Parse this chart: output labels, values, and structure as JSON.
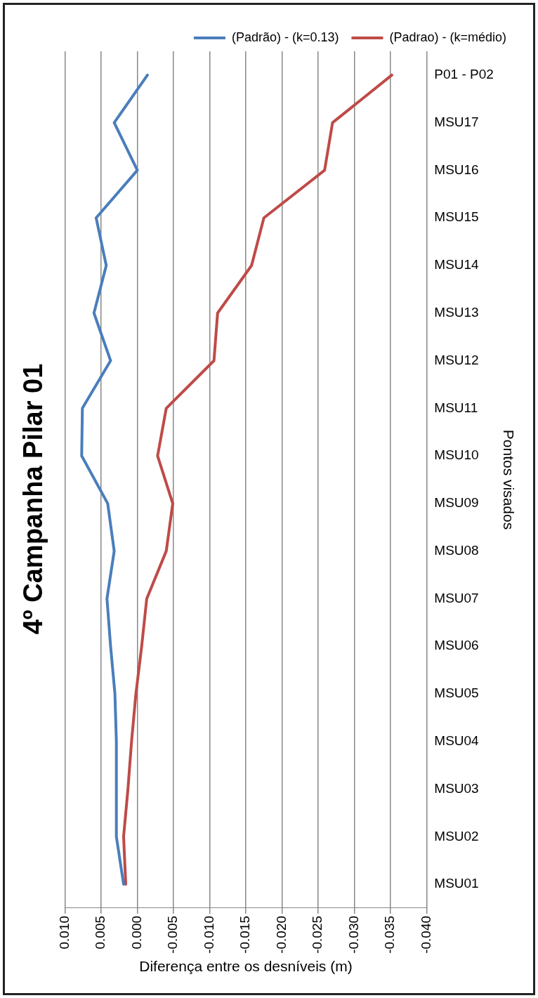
{
  "chart_data": {
    "type": "line",
    "orientation": "horizontal",
    "title": "4º Campanha Pilar 01",
    "xlabel": "Diferença entre os desníveis (m)",
    "ylabel": "Pontos visados",
    "categories": [
      "P01 - P02",
      "MSU17",
      "MSU16",
      "MSU15",
      "MSU14",
      "MSU13",
      "MSU12",
      "MSU11",
      "MSU10",
      "MSU09",
      "MSU08",
      "MSU07",
      "MSU06",
      "MSU05",
      "MSU04",
      "MSU03",
      "MSU02",
      "MSU01"
    ],
    "series": [
      {
        "name": "(Padrão) - (k=0.13)",
        "color": "#4a7ebb",
        "values": [
          -0.0014,
          0.0032,
          0.0,
          0.0057,
          0.0043,
          0.006,
          0.0037,
          0.0076,
          0.0077,
          0.0041,
          0.0032,
          0.0042,
          0.0037,
          0.0031,
          0.0029,
          0.0029,
          0.0029,
          0.0019
        ]
      },
      {
        "name": "(Padrao) - (k=médio)",
        "color": "#be4b48",
        "values": [
          -0.0352,
          -0.027,
          -0.0259,
          -0.0175,
          -0.0158,
          -0.0111,
          -0.0106,
          -0.004,
          -0.0028,
          -0.0049,
          -0.004,
          -0.0013,
          -0.0006,
          0.0002,
          0.0008,
          0.0013,
          0.0019,
          0.0016
        ]
      }
    ],
    "xlim": [
      0.01,
      -0.04
    ],
    "xticks": [
      {
        "value": 0.01,
        "label": "0.010"
      },
      {
        "value": 0.005,
        "label": "0.005"
      },
      {
        "value": 0,
        "label": "0.000"
      },
      {
        "value": -0.005,
        "label": "-0.005"
      },
      {
        "value": -0.01,
        "label": "-0.010"
      },
      {
        "value": -0.015,
        "label": "-0.015"
      },
      {
        "value": -0.02,
        "label": "-0.020"
      },
      {
        "value": -0.025,
        "label": "-0.025"
      },
      {
        "value": -0.03,
        "label": "-0.030"
      },
      {
        "value": -0.035,
        "label": "-0.035"
      },
      {
        "value": -0.04,
        "label": "-0.040"
      }
    ],
    "grid": "x",
    "legend": "top right",
    "marker": "none",
    "line_style": "solid"
  }
}
